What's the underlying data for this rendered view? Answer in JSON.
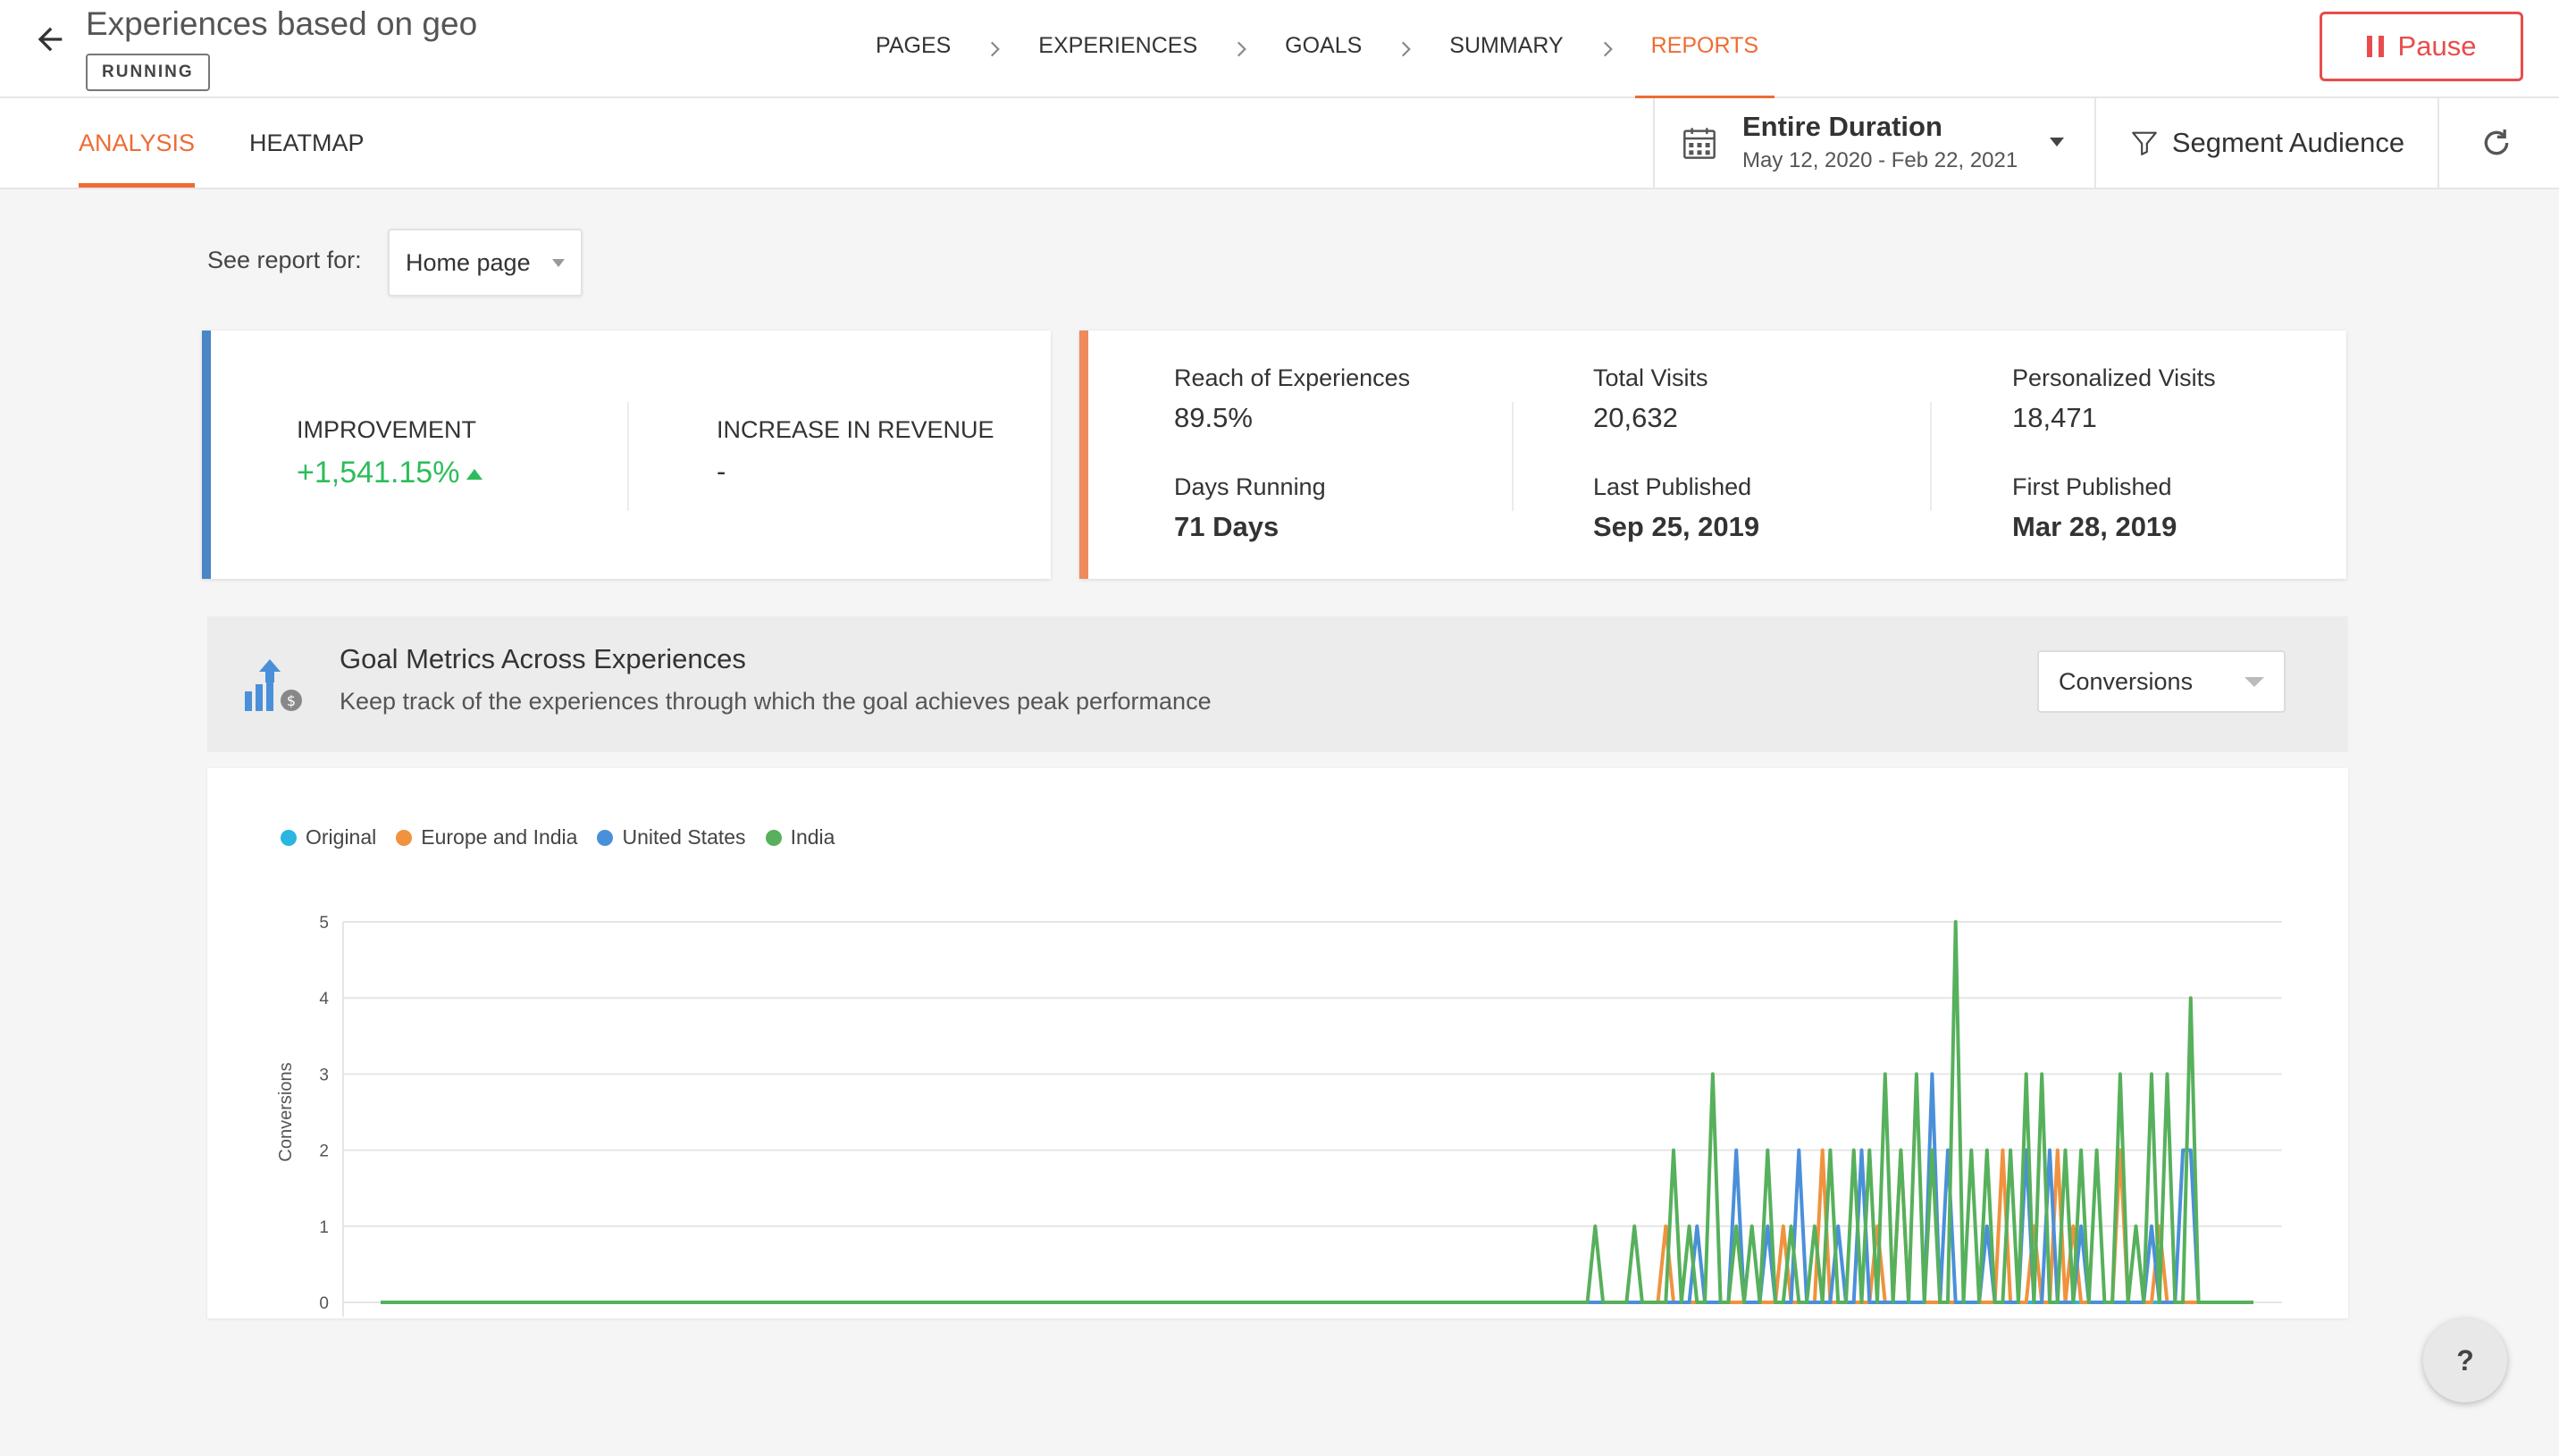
{
  "header": {
    "title": "Experiences based on geo",
    "status": "RUNNING",
    "steps": [
      "PAGES",
      "EXPERIENCES",
      "GOALS",
      "SUMMARY",
      "REPORTS"
    ],
    "active_step": "REPORTS",
    "pause_label": "Pause"
  },
  "subnav": {
    "tabs": [
      "ANALYSIS",
      "HEATMAP"
    ],
    "active_tab": "ANALYSIS",
    "duration_title": "Entire Duration",
    "duration_range": "May 12, 2020 - Feb 22, 2021",
    "segment_label": "Segment Audience"
  },
  "report": {
    "label": "See report for:",
    "selected": "Home page"
  },
  "summary": {
    "improvement_label": "IMPROVEMENT",
    "improvement_value": "+1,541.15%",
    "revenue_label": "INCREASE IN REVENUE",
    "revenue_value": "-"
  },
  "stats": {
    "reach_label": "Reach of Experiences",
    "reach_value": "89.5%",
    "visits_label": "Total Visits",
    "visits_value": "20,632",
    "personalized_label": "Personalized Visits",
    "personalized_value": "18,471",
    "days_label": "Days Running",
    "days_value": "71 Days",
    "last_label": "Last Published",
    "last_value": "Sep 25, 2019",
    "first_label": "First Published",
    "first_value": "Mar 28, 2019"
  },
  "goal": {
    "title": "Goal Metrics Across Experiences",
    "subtitle": "Keep track of the experiences through which the goal achieves peak performance",
    "metric": "Conversions"
  },
  "help_label": "?",
  "colors": {
    "accent": "#ee6c34",
    "pause": "#e84c4c",
    "improve": "#2dbd5a"
  },
  "chart_data": {
    "type": "line",
    "ylabel": "Conversions",
    "ylim": [
      0,
      5
    ],
    "yticks": [
      0,
      1,
      2,
      3,
      4,
      5
    ],
    "n_points": 210,
    "series": [
      {
        "name": "Original",
        "color": "#29b6e0",
        "points": []
      },
      {
        "name": "Europe and India",
        "color": "#f0923e",
        "points": [
          [
            164,
            1
          ],
          [
            179,
            1
          ],
          [
            184,
            2
          ],
          [
            191,
            1
          ],
          [
            194,
            2
          ],
          [
            207,
            2
          ],
          [
            211,
            1
          ],
          [
            214,
            2
          ],
          [
            216,
            1
          ],
          [
            222,
            2
          ],
          [
            227,
            1
          ]
        ]
      },
      {
        "name": "United States",
        "color": "#4a90d9",
        "points": [
          [
            168,
            1
          ],
          [
            173,
            2
          ],
          [
            177,
            1
          ],
          [
            181,
            2
          ],
          [
            186,
            1
          ],
          [
            189,
            2
          ],
          [
            198,
            3
          ],
          [
            200,
            2
          ],
          [
            205,
            1
          ],
          [
            210,
            2
          ],
          [
            213,
            2
          ],
          [
            217,
            1
          ],
          [
            226,
            1
          ],
          [
            230,
            2
          ],
          [
            231,
            2
          ]
        ]
      },
      {
        "name": "India",
        "color": "#57b05c",
        "points": [
          [
            155,
            1
          ],
          [
            160,
            1
          ],
          [
            165,
            2
          ],
          [
            167,
            1
          ],
          [
            170,
            3
          ],
          [
            173,
            1
          ],
          [
            175,
            1
          ],
          [
            177,
            2
          ],
          [
            180,
            1
          ],
          [
            183,
            1
          ],
          [
            185,
            2
          ],
          [
            188,
            2
          ],
          [
            190,
            2
          ],
          [
            192,
            3
          ],
          [
            194,
            2
          ],
          [
            196,
            3
          ],
          [
            198,
            2
          ],
          [
            201,
            5
          ],
          [
            203,
            2
          ],
          [
            205,
            2
          ],
          [
            208,
            2
          ],
          [
            210,
            3
          ],
          [
            212,
            3
          ],
          [
            215,
            2
          ],
          [
            217,
            2
          ],
          [
            219,
            2
          ],
          [
            222,
            3
          ],
          [
            224,
            1
          ],
          [
            226,
            3
          ],
          [
            228,
            3
          ],
          [
            231,
            4
          ]
        ]
      }
    ]
  }
}
